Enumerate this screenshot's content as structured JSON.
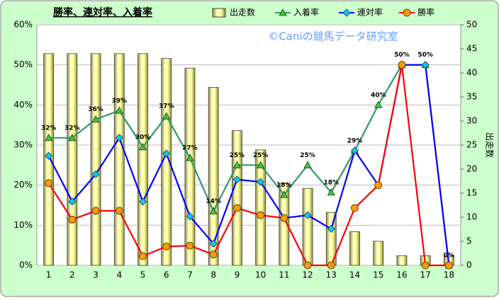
{
  "chart_data": {
    "type": "bar-line",
    "title": "勝率、連対率、入着率",
    "watermark": "©Caniの競馬データ研究室",
    "y2label": "出走数",
    "categories": [
      "1",
      "2",
      "3",
      "4",
      "5",
      "6",
      "7",
      "8",
      "9",
      "10",
      "11",
      "12",
      "13",
      "14",
      "15",
      "16",
      "17",
      "18"
    ],
    "ylim": [
      0,
      60
    ],
    "yticks": [
      {
        "value": 0,
        "label": "0%"
      },
      {
        "value": 10,
        "label": "10%"
      },
      {
        "value": 20,
        "label": "20%"
      },
      {
        "value": 30,
        "label": "30%"
      },
      {
        "value": 40,
        "label": "40%"
      },
      {
        "value": 50,
        "label": "50%"
      },
      {
        "value": 60,
        "label": "60%"
      }
    ],
    "y2lim": [
      0,
      50
    ],
    "y2ticks": [
      0,
      5,
      10,
      15,
      20,
      25,
      30,
      35,
      40,
      45,
      50
    ],
    "grid": true,
    "series": [
      {
        "name": "出走数",
        "type": "bar",
        "axis": "y2",
        "color": "#ffff99",
        "values": [
          44,
          44,
          44,
          44,
          44,
          43,
          41,
          37,
          28,
          24,
          17,
          16,
          11,
          7,
          5,
          2,
          2,
          2
        ]
      },
      {
        "name": "入着率",
        "type": "line",
        "color": "#339966",
        "marker": "triangle",
        "marker_color": "#33cc33",
        "values": [
          31.8,
          31.8,
          36.4,
          38.6,
          29.5,
          37.2,
          26.8,
          13.5,
          25,
          25,
          17.6,
          25,
          18.2,
          28.6,
          40,
          50,
          50,
          0
        ],
        "value_labels": [
          "32%",
          "32%",
          "36%",
          "39%",
          "30%",
          "37%",
          "27%",
          "14%",
          "25%",
          "25%",
          "18%",
          "25%",
          "18%",
          "29%",
          "40%",
          "50%",
          "50%",
          "0%"
        ]
      },
      {
        "name": "連対率",
        "type": "line",
        "color": "#0000ff",
        "marker": "diamond",
        "marker_color": "#00ccff",
        "values": [
          27.3,
          15.9,
          22.7,
          31.8,
          15.9,
          27.9,
          12.2,
          5.4,
          21.4,
          20.8,
          11.8,
          12.5,
          9.1,
          28.6,
          20,
          50,
          50,
          0
        ]
      },
      {
        "name": "勝率",
        "type": "line",
        "color": "#ff0000",
        "marker": "circle",
        "marker_color": "#ff9900",
        "values": [
          20.5,
          11.4,
          13.6,
          13.6,
          2.3,
          4.7,
          4.9,
          2.7,
          14.3,
          12.5,
          11.8,
          0,
          0,
          14.3,
          20,
          50,
          0,
          0
        ]
      }
    ]
  }
}
